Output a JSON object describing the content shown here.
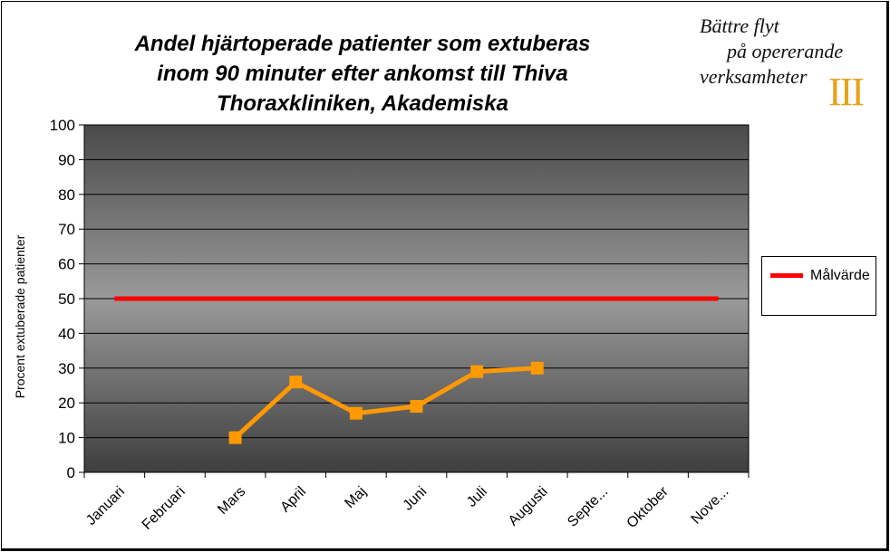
{
  "chart_data": {
    "type": "line",
    "title_lines": [
      "Andel hjärtoperade patienter som extuberas",
      "inom 90 minuter efter ankomst till Thiva",
      "Thoraxkliniken, Akademiska"
    ],
    "ylabel": "Procent extuberade patienter",
    "xlabel": "",
    "categories": [
      "Januari",
      "Februari",
      "Mars",
      "April",
      "Maj",
      "Juni",
      "Juli",
      "Augusti",
      "Septe...",
      "Oktober",
      "Nove..."
    ],
    "ylim": [
      0,
      100
    ],
    "yticks": [
      0,
      10,
      20,
      30,
      40,
      50,
      60,
      70,
      80,
      90,
      100
    ],
    "grid": true,
    "legend_position": "right",
    "series": [
      {
        "values": [
          null,
          null,
          10,
          26,
          17,
          19,
          29,
          30,
          null,
          null,
          null
        ],
        "color": "#ff9900",
        "marker": "square"
      },
      {
        "name": "Målvärde",
        "values": [
          50,
          50,
          50,
          50,
          50,
          50,
          50,
          50,
          50,
          50,
          50
        ],
        "color": "#ff0000"
      }
    ],
    "plot_background": "gradient dark gray"
  },
  "logo": {
    "line1": "Bättre flyt",
    "line2": "på opererande",
    "line3": "verksamheter",
    "numeral": "III",
    "numeral_color": "#e6a21a"
  }
}
